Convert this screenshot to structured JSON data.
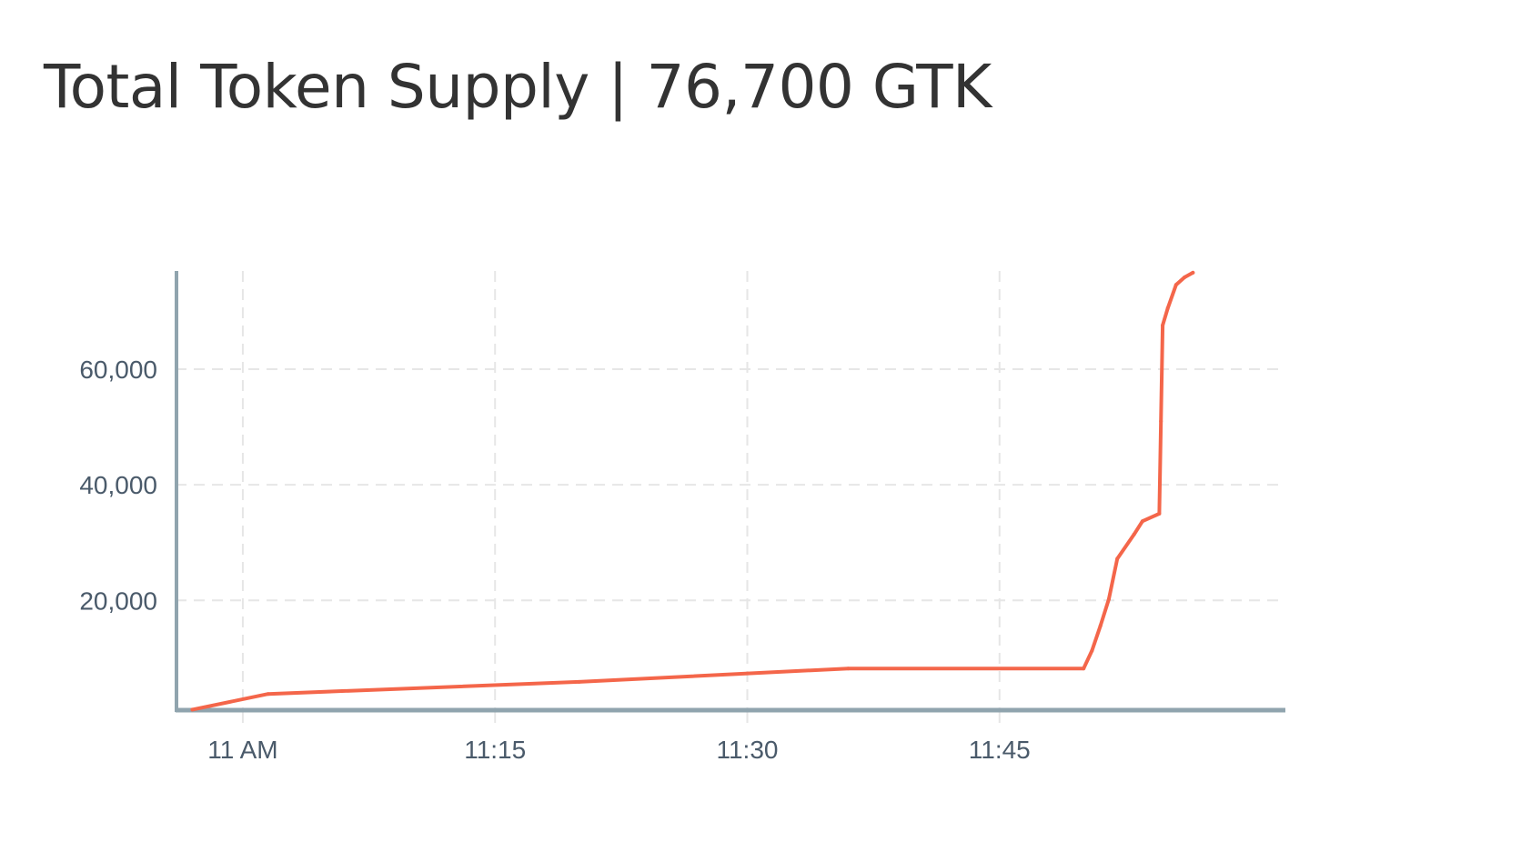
{
  "header": {
    "title": "Total Token Supply | 76,700 GTK"
  },
  "chart_data": {
    "type": "line",
    "title": "Total Token Supply | 76,700 GTK",
    "xlabel": "",
    "ylabel": "",
    "x_unit": "time",
    "xlim": [
      "10:56",
      "12:02"
    ],
    "ylim": [
      1000,
      77000
    ],
    "x_ticks": [
      {
        "t": "11:00",
        "label": "11 AM"
      },
      {
        "t": "11:15",
        "label": "11:15"
      },
      {
        "t": "11:30",
        "label": "11:30"
      },
      {
        "t": "11:45",
        "label": "11:45"
      }
    ],
    "y_ticks": [
      {
        "v": 20000,
        "label": "20,000"
      },
      {
        "v": 40000,
        "label": "40,000"
      },
      {
        "v": 60000,
        "label": "60,000"
      }
    ],
    "grid": "dashed",
    "legend": "none",
    "colors": {
      "line": "#f4664a",
      "axis": "#90a4ae",
      "grid": "#e6e6e6",
      "tick_text": "#4a5a6a",
      "title_text": "#333333"
    },
    "series": [
      {
        "points": [
          [
            "10:57",
            1100
          ],
          [
            "11:01.5",
            3800
          ],
          [
            "11:20",
            5900
          ],
          [
            "11:36",
            8200
          ],
          [
            "11:50",
            8200
          ],
          [
            "11:50.5",
            11300
          ],
          [
            "11:51",
            15600
          ],
          [
            "11:51.5",
            20200
          ],
          [
            "11:52",
            27200
          ],
          [
            "11:53",
            31400
          ],
          [
            "11:53.5",
            33700
          ],
          [
            "11:54.5",
            35000
          ],
          [
            "11:54.6",
            51000
          ],
          [
            "11:54.7",
            67600
          ],
          [
            "11:55",
            70500
          ],
          [
            "11:55.5",
            74600
          ],
          [
            "11:56",
            75900
          ],
          [
            "11:56.5",
            76700
          ]
        ]
      }
    ]
  }
}
